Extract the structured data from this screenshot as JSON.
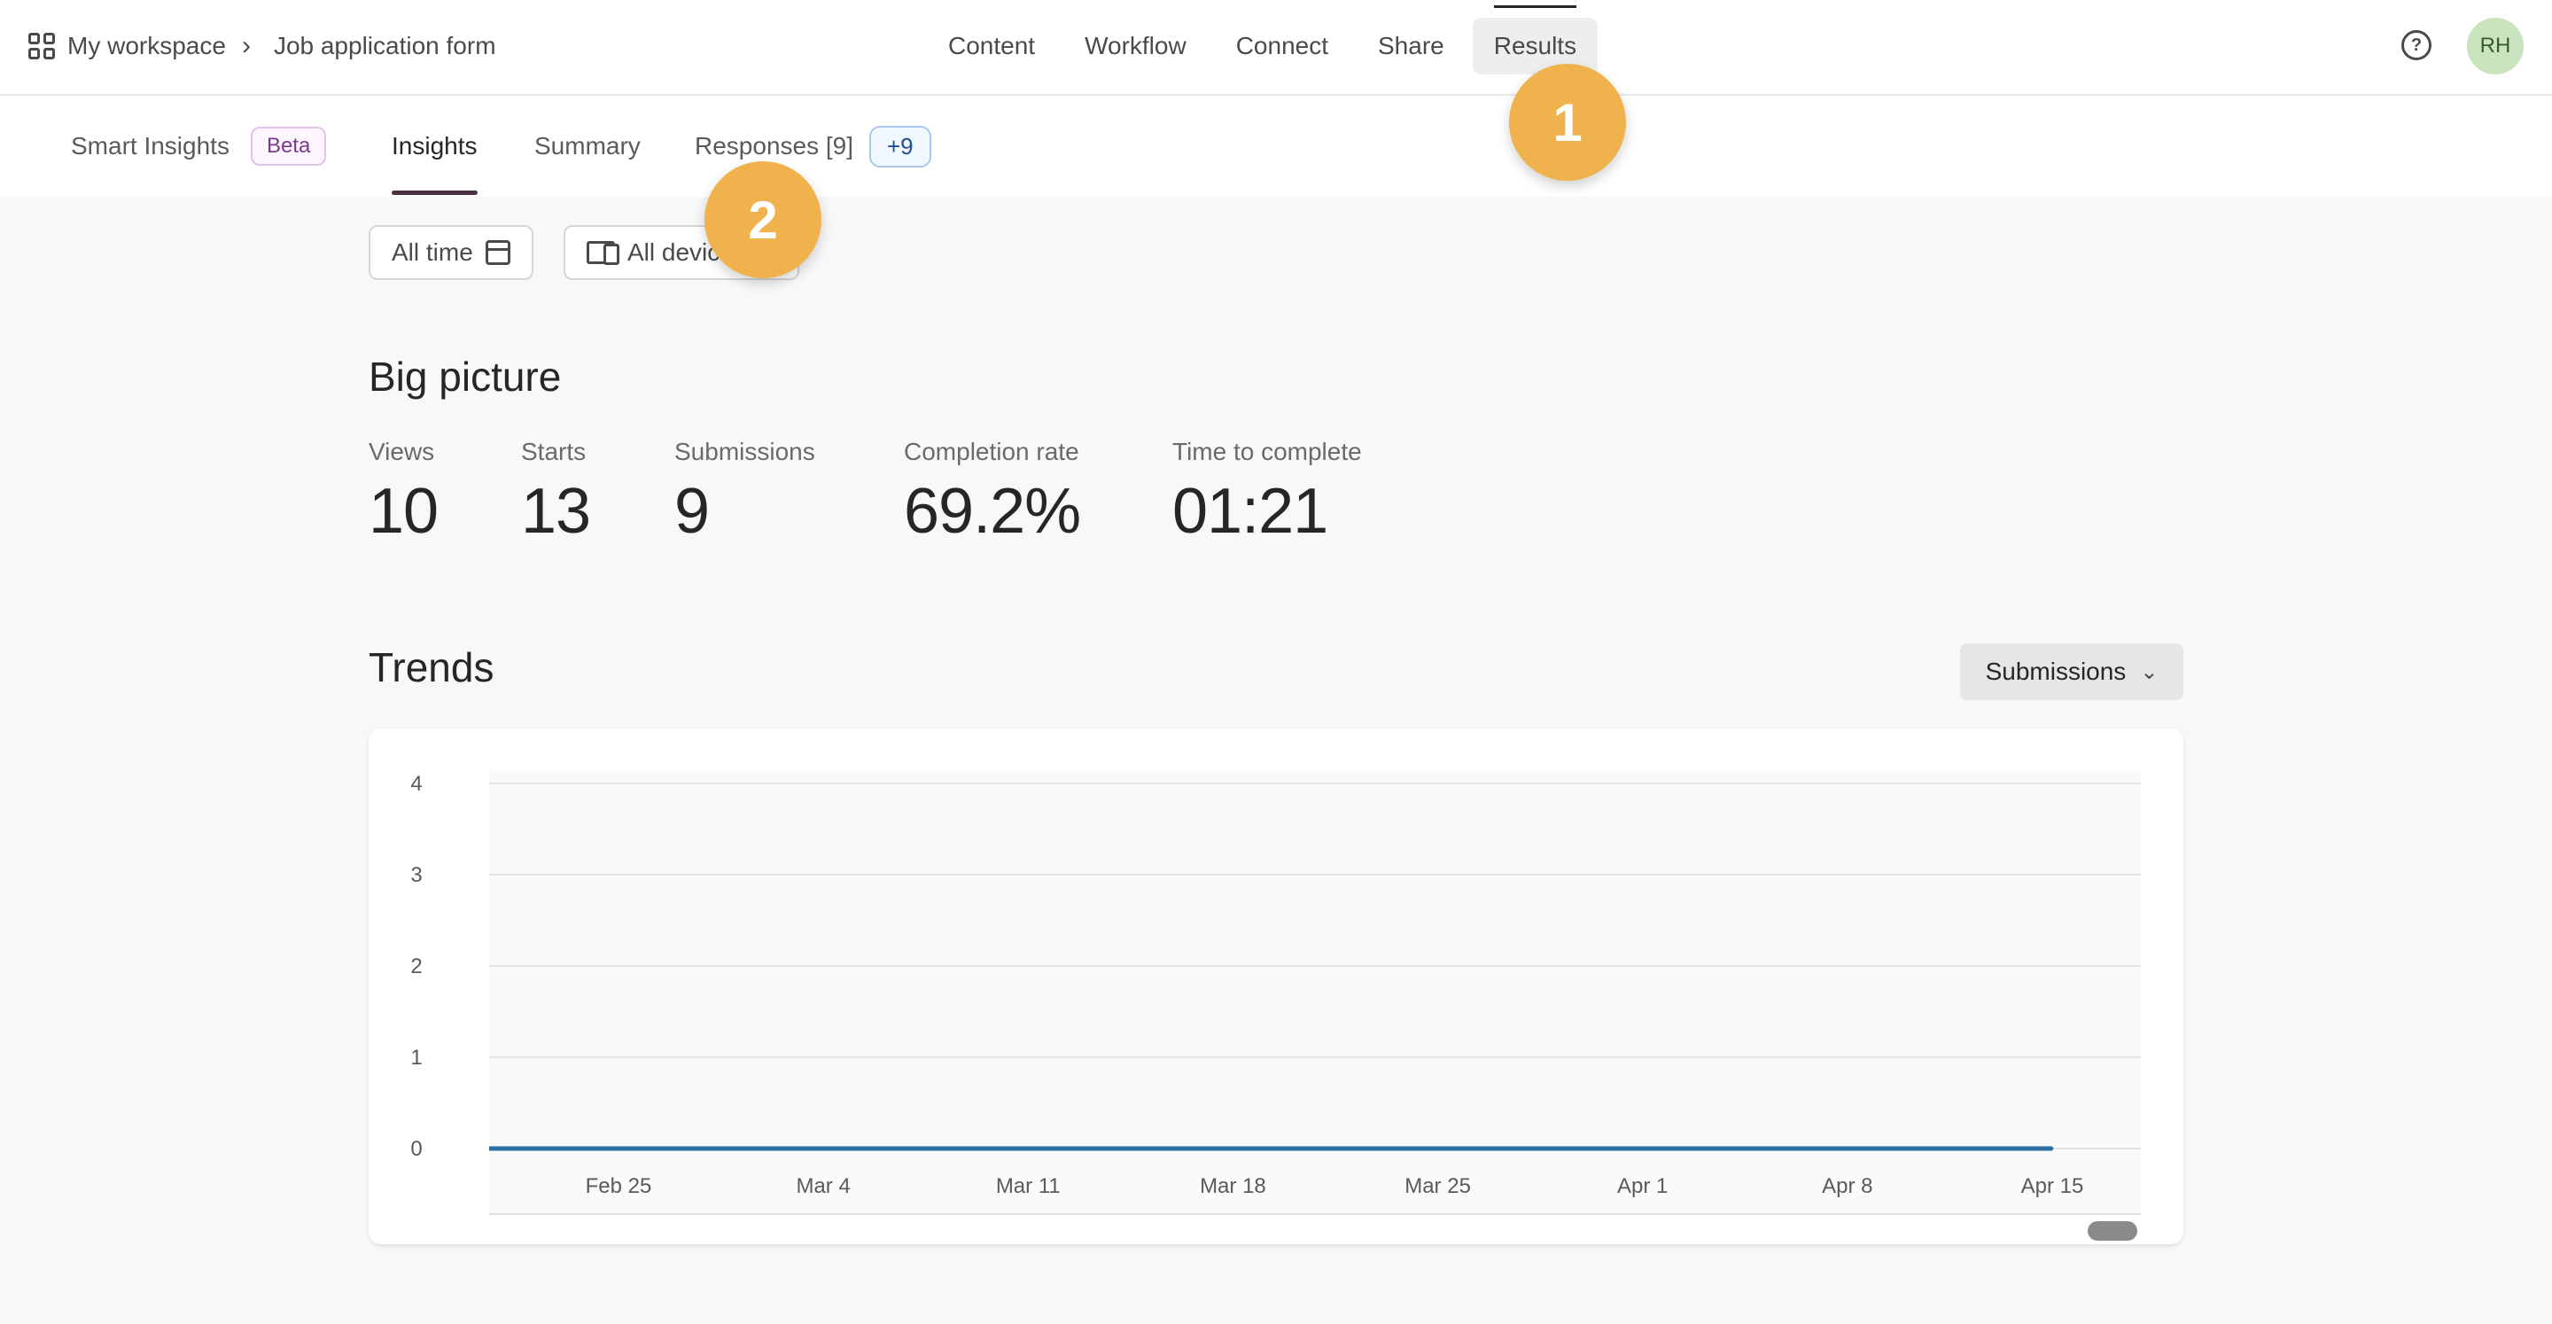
{
  "breadcrumb": {
    "workspace": "My workspace",
    "form": "Job application form"
  },
  "main_nav": [
    "Content",
    "Workflow",
    "Connect",
    "Share",
    "Results"
  ],
  "main_nav_active": "Results",
  "user": {
    "initials": "RH"
  },
  "sub_nav": {
    "smart_insights": "Smart Insights",
    "beta": "Beta",
    "insights": "Insights",
    "summary": "Summary",
    "responses": "Responses [9]",
    "responses_badge": "+9"
  },
  "filters": {
    "time": "All time",
    "devices": "All devices"
  },
  "big_picture": {
    "title": "Big picture",
    "stats": [
      {
        "label": "Views",
        "value": "10"
      },
      {
        "label": "Starts",
        "value": "13"
      },
      {
        "label": "Submissions",
        "value": "9"
      },
      {
        "label": "Completion rate",
        "value": "69.2%"
      },
      {
        "label": "Time to complete",
        "value": "01:21"
      }
    ]
  },
  "trends": {
    "title": "Trends",
    "metric": "Submissions"
  },
  "chart_data": {
    "type": "line",
    "title": "",
    "xlabel": "",
    "ylabel": "",
    "x": [
      "Feb 25",
      "Mar 4",
      "Mar 11",
      "Mar 18",
      "Mar 25",
      "Apr 1",
      "Apr 8",
      "Apr 15"
    ],
    "series": [
      {
        "values": [
          0,
          0,
          0,
          0,
          0,
          0,
          0,
          0
        ]
      }
    ],
    "yticks": [
      0,
      1,
      2,
      3,
      4
    ],
    "ylim": [
      0,
      4
    ],
    "grid": true,
    "line_color": "#2e6fa3"
  },
  "markers": [
    "1",
    "2"
  ],
  "colors": {
    "accent": "#4a3044",
    "marker": "#f0b24c",
    "avatar_bg": "#c9e4bf"
  }
}
